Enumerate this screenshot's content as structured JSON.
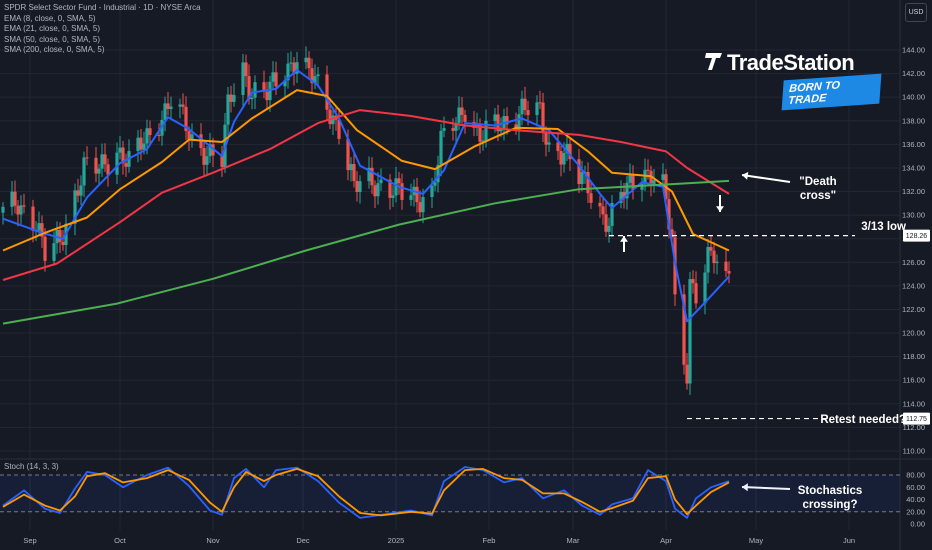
{
  "header": {
    "legend": [
      "SPDR Select Sector Fund - Industrial · 1D · NYSE Arca",
      "EMA (8, close, 0, SMA, 5)",
      "EMA (21, close, 0, SMA, 5)",
      "SMA (50, close, 0, SMA, 5)",
      "SMA (200, close, 0, SMA, 5)"
    ],
    "currency_button": "USD",
    "stoch_label": "Stoch (14, 3, 3)"
  },
  "logo": {
    "brand": "TradeStation",
    "tagline": "BORN TO TRADE"
  },
  "annotations": {
    "death_cross": "\"Death cross\"",
    "low_label": "3/13 low",
    "retest_label": "Retest needed?",
    "stoch_note": "Stochastics crossing?"
  },
  "colors": {
    "background": "#161a25",
    "up_candle": "#26a69a",
    "down_candle": "#ef5350",
    "ema8": "#2962ff",
    "ema21": "#ff9800",
    "sma50": "#f23645",
    "sma200": "#4caf50",
    "stoch_k": "#2962ff",
    "stoch_d": "#ff9800"
  },
  "chart_data": [
    {
      "type": "line",
      "title": "SPDR Select Sector Fund - Industrial · 1D · NYSE Arca",
      "x_ticks": [
        "Sep",
        "Oct",
        "Nov",
        "Dec",
        "2025",
        "Feb",
        "Mar",
        "Apr",
        "May",
        "Jun"
      ],
      "y_ticks": [
        110,
        112,
        114,
        116,
        118,
        120,
        122,
        124,
        126,
        128,
        130,
        132,
        134,
        136,
        138,
        140,
        142,
        144
      ],
      "y_tick_labels": [
        "110.00",
        "112.00",
        "114.00",
        "116.00",
        "118.00",
        "120.00",
        "122.00",
        "124.00",
        "126.00",
        "128.00",
        "130.00",
        "132.00",
        "134.00",
        "136.00",
        "138.00",
        "140.00",
        "142.00",
        "144.00"
      ],
      "ylim": [
        109,
        146
      ],
      "price_path_close": [
        [
          "2024-08-23",
          130.2
        ],
        [
          "2024-08-28",
          131.0
        ],
        [
          "2024-09-03",
          129.5
        ],
        [
          "2024-09-06",
          126.5
        ],
        [
          "2024-09-11",
          127.8
        ],
        [
          "2024-09-16",
          131.8
        ],
        [
          "2024-09-19",
          134.0
        ],
        [
          "2024-09-24",
          133.8
        ],
        [
          "2024-09-30",
          135.6
        ],
        [
          "2024-10-04",
          134.5
        ],
        [
          "2024-10-10",
          136.5
        ],
        [
          "2024-10-15",
          138.5
        ],
        [
          "2024-10-18",
          139.8
        ],
        [
          "2024-10-22",
          138.0
        ],
        [
          "2024-10-25",
          136.2
        ],
        [
          "2024-10-30",
          135.5
        ],
        [
          "2024-11-04",
          134.6
        ],
        [
          "2024-11-06",
          139.0
        ],
        [
          "2024-11-08",
          140.8
        ],
        [
          "2024-11-11",
          142.5
        ],
        [
          "2024-11-14",
          140.5
        ],
        [
          "2024-11-19",
          140.2
        ],
        [
          "2024-11-25",
          142.3
        ],
        [
          "2024-11-29",
          143.5
        ],
        [
          "2024-12-03",
          142.0
        ],
        [
          "2024-12-06",
          140.8
        ],
        [
          "2024-12-10",
          138.8
        ],
        [
          "2024-12-13",
          137.5
        ],
        [
          "2024-12-18",
          132.2
        ],
        [
          "2024-12-23",
          133.0
        ],
        [
          "2024-12-27",
          132.7
        ],
        [
          "2025-01-03",
          131.7
        ],
        [
          "2025-01-08",
          131.5
        ],
        [
          "2025-01-13",
          132.0
        ],
        [
          "2025-01-16",
          136.0
        ],
        [
          "2025-01-21",
          138.0
        ],
        [
          "2025-01-24",
          139.3
        ],
        [
          "2025-01-29",
          136.5
        ],
        [
          "2025-02-03",
          137.5
        ],
        [
          "2025-02-07",
          138.0
        ],
        [
          "2025-02-12",
          139.0
        ],
        [
          "2025-02-18",
          138.5
        ],
        [
          "2025-02-21",
          135.8
        ],
        [
          "2025-02-26",
          135.5
        ],
        [
          "2025-03-03",
          133.0
        ],
        [
          "2025-03-06",
          132.5
        ],
        [
          "2025-03-10",
          130.5
        ],
        [
          "2025-03-13",
          129.3
        ],
        [
          "2025-03-17",
          131.5
        ],
        [
          "2025-03-20",
          132.5
        ],
        [
          "2025-03-24",
          133.8
        ],
        [
          "2025-03-27",
          133.5
        ],
        [
          "2025-03-31",
          132.2
        ],
        [
          "2025-04-03",
          127.8
        ],
        [
          "2025-04-04",
          122.5
        ],
        [
          "2025-04-07",
          118.0
        ],
        [
          "2025-04-08",
          117.0
        ],
        [
          "2025-04-09",
          124.5
        ],
        [
          "2025-04-11",
          123.2
        ],
        [
          "2025-04-15",
          126.0
        ],
        [
          "2025-04-17",
          126.5
        ],
        [
          "2025-04-21",
          124.6
        ],
        [
          "2025-04-22",
          125.7
        ]
      ],
      "series": [
        {
          "name": "EMA (8, close, 0, SMA, 5)",
          "color": "#2962ff",
          "values": [
            [
              "2024-08-23",
              129.7
            ],
            [
              "2024-09-05",
              128.5
            ],
            [
              "2024-09-12",
              128.0
            ],
            [
              "2024-09-20",
              131.5
            ],
            [
              "2024-10-01",
              134.4
            ],
            [
              "2024-10-10",
              135.6
            ],
            [
              "2024-10-17",
              138.3
            ],
            [
              "2024-10-24",
              137.3
            ],
            [
              "2024-11-04",
              135.0
            ],
            [
              "2024-11-08",
              137.9
            ],
            [
              "2024-11-14",
              140.4
            ],
            [
              "2024-11-22",
              140.7
            ],
            [
              "2024-11-29",
              142.3
            ],
            [
              "2024-12-06",
              141.0
            ],
            [
              "2024-12-13",
              138.2
            ],
            [
              "2024-12-20",
              134.2
            ],
            [
              "2025-01-02",
              132.4
            ],
            [
              "2025-01-10",
              131.8
            ],
            [
              "2025-01-17",
              133.8
            ],
            [
              "2025-01-24",
              137.8
            ],
            [
              "2025-02-03",
              137.6
            ],
            [
              "2025-02-12",
              138.2
            ],
            [
              "2025-02-21",
              137.2
            ],
            [
              "2025-03-03",
              134.2
            ],
            [
              "2025-03-10",
              131.8
            ],
            [
              "2025-03-14",
              130.6
            ],
            [
              "2025-03-24",
              132.8
            ],
            [
              "2025-03-31",
              132.4
            ],
            [
              "2025-04-04",
              126.0
            ],
            [
              "2025-04-08",
              121.0
            ],
            [
              "2025-04-14",
              122.6
            ],
            [
              "2025-04-22",
              124.8
            ]
          ]
        },
        {
          "name": "EMA (21, close, 0, SMA, 5)",
          "color": "#ff9800",
          "values": [
            [
              "2024-08-23",
              127.0
            ],
            [
              "2024-09-06",
              128.5
            ],
            [
              "2024-09-20",
              129.8
            ],
            [
              "2024-10-01",
              132.2
            ],
            [
              "2024-10-15",
              134.5
            ],
            [
              "2024-10-24",
              136.4
            ],
            [
              "2024-11-04",
              136.2
            ],
            [
              "2024-11-14",
              138.2
            ],
            [
              "2024-11-29",
              140.6
            ],
            [
              "2024-12-09",
              140.1
            ],
            [
              "2024-12-19",
              137.2
            ],
            [
              "2025-01-03",
              134.6
            ],
            [
              "2025-01-14",
              133.9
            ],
            [
              "2025-01-27",
              135.8
            ],
            [
              "2025-02-10",
              137.4
            ],
            [
              "2025-02-24",
              137.3
            ],
            [
              "2025-03-06",
              135.4
            ],
            [
              "2025-03-14",
              133.6
            ],
            [
              "2025-03-27",
              133.3
            ],
            [
              "2025-04-03",
              132.0
            ],
            [
              "2025-04-10",
              128.4
            ],
            [
              "2025-04-22",
              127.0
            ]
          ]
        },
        {
          "name": "SMA (50, close, 0, SMA, 5)",
          "color": "#f23645",
          "values": [
            [
              "2024-08-23",
              124.5
            ],
            [
              "2024-09-10",
              125.9
            ],
            [
              "2024-10-01",
              129.4
            ],
            [
              "2024-10-15",
              131.9
            ],
            [
              "2024-11-01",
              133.6
            ],
            [
              "2024-11-20",
              135.6
            ],
            [
              "2024-12-06",
              137.8
            ],
            [
              "2024-12-20",
              138.9
            ],
            [
              "2025-01-06",
              138.4
            ],
            [
              "2025-01-24",
              137.6
            ],
            [
              "2025-02-10",
              137.2
            ],
            [
              "2025-03-03",
              136.8
            ],
            [
              "2025-03-17",
              136.2
            ],
            [
              "2025-04-01",
              135.4
            ],
            [
              "2025-04-08",
              134.0
            ],
            [
              "2025-04-22",
              131.8
            ]
          ]
        },
        {
          "name": "SMA (200, close, 0, SMA, 5)",
          "color": "#4caf50",
          "values": [
            [
              "2024-08-23",
              120.8
            ],
            [
              "2024-09-30",
              122.5
            ],
            [
              "2024-11-01",
              124.6
            ],
            [
              "2024-12-02",
              127.0
            ],
            [
              "2025-01-02",
              129.2
            ],
            [
              "2025-02-03",
              131.0
            ],
            [
              "2025-03-03",
              132.2
            ],
            [
              "2025-04-01",
              132.6
            ],
            [
              "2025-04-22",
              132.9
            ]
          ]
        }
      ],
      "reference_levels": [
        {
          "label": "3/13 low",
          "value": 128.26,
          "value_label": "128.26"
        },
        {
          "label": "Retest needed?",
          "value": 112.75,
          "value_label": "112.75"
        }
      ]
    },
    {
      "type": "line",
      "title": "Stoch (14, 3, 3)",
      "y_ticks": [
        0,
        20,
        40,
        60,
        80
      ],
      "y_tick_labels": [
        "0.00",
        "20.00",
        "40.00",
        "60.00",
        "80.00"
      ],
      "ylim": [
        -8,
        100
      ],
      "bands": [
        20,
        80
      ],
      "series": [
        {
          "name": "%K",
          "color": "#2962ff",
          "values": [
            [
              "2024-08-23",
              30
            ],
            [
              "2024-08-30",
              55
            ],
            [
              "2024-09-06",
              25
            ],
            [
              "2024-09-11",
              18
            ],
            [
              "2024-09-16",
              58
            ],
            [
              "2024-09-20",
              85
            ],
            [
              "2024-09-26",
              80
            ],
            [
              "2024-10-02",
              60
            ],
            [
              "2024-10-10",
              80
            ],
            [
              "2024-10-17",
              92
            ],
            [
              "2024-10-24",
              62
            ],
            [
              "2024-10-31",
              22
            ],
            [
              "2024-11-04",
              15
            ],
            [
              "2024-11-08",
              75
            ],
            [
              "2024-11-12",
              90
            ],
            [
              "2024-11-18",
              60
            ],
            [
              "2024-11-22",
              88
            ],
            [
              "2024-11-29",
              92
            ],
            [
              "2024-12-06",
              70
            ],
            [
              "2024-12-13",
              35
            ],
            [
              "2024-12-20",
              10
            ],
            [
              "2024-12-27",
              15
            ],
            [
              "2025-01-06",
              22
            ],
            [
              "2025-01-13",
              14
            ],
            [
              "2025-01-17",
              70
            ],
            [
              "2025-01-24",
              93
            ],
            [
              "2025-01-30",
              88
            ],
            [
              "2025-02-06",
              68
            ],
            [
              "2025-02-12",
              75
            ],
            [
              "2025-02-19",
              42
            ],
            [
              "2025-02-26",
              55
            ],
            [
              "2025-03-04",
              30
            ],
            [
              "2025-03-10",
              15
            ],
            [
              "2025-03-14",
              32
            ],
            [
              "2025-03-21",
              42
            ],
            [
              "2025-03-26",
              88
            ],
            [
              "2025-04-01",
              70
            ],
            [
              "2025-04-04",
              25
            ],
            [
              "2025-04-08",
              10
            ],
            [
              "2025-04-11",
              42
            ],
            [
              "2025-04-16",
              60
            ],
            [
              "2025-04-22",
              70
            ]
          ]
        },
        {
          "name": "%D",
          "color": "#ff9800",
          "values": [
            [
              "2024-08-23",
              28
            ],
            [
              "2024-08-30",
              48
            ],
            [
              "2024-09-06",
              30
            ],
            [
              "2024-09-11",
              22
            ],
            [
              "2024-09-16",
              45
            ],
            [
              "2024-09-20",
              78
            ],
            [
              "2024-09-26",
              83
            ],
            [
              "2024-10-02",
              68
            ],
            [
              "2024-10-10",
              75
            ],
            [
              "2024-10-17",
              88
            ],
            [
              "2024-10-24",
              72
            ],
            [
              "2024-10-31",
              35
            ],
            [
              "2024-11-04",
              20
            ],
            [
              "2024-11-08",
              60
            ],
            [
              "2024-11-12",
              85
            ],
            [
              "2024-11-18",
              70
            ],
            [
              "2024-11-22",
              80
            ],
            [
              "2024-11-29",
              90
            ],
            [
              "2024-12-06",
              78
            ],
            [
              "2024-12-13",
              45
            ],
            [
              "2024-12-20",
              18
            ],
            [
              "2024-12-27",
              14
            ],
            [
              "2025-01-06",
              20
            ],
            [
              "2025-01-13",
              17
            ],
            [
              "2025-01-17",
              55
            ],
            [
              "2025-01-24",
              88
            ],
            [
              "2025-01-30",
              90
            ],
            [
              "2025-02-06",
              75
            ],
            [
              "2025-02-12",
              72
            ],
            [
              "2025-02-19",
              50
            ],
            [
              "2025-02-26",
              50
            ],
            [
              "2025-03-04",
              36
            ],
            [
              "2025-03-10",
              20
            ],
            [
              "2025-03-14",
              26
            ],
            [
              "2025-03-21",
              38
            ],
            [
              "2025-03-26",
              75
            ],
            [
              "2025-04-01",
              78
            ],
            [
              "2025-04-04",
              40
            ],
            [
              "2025-04-08",
              16
            ],
            [
              "2025-04-11",
              30
            ],
            [
              "2025-04-16",
              52
            ],
            [
              "2025-04-22",
              68
            ]
          ]
        }
      ]
    }
  ]
}
